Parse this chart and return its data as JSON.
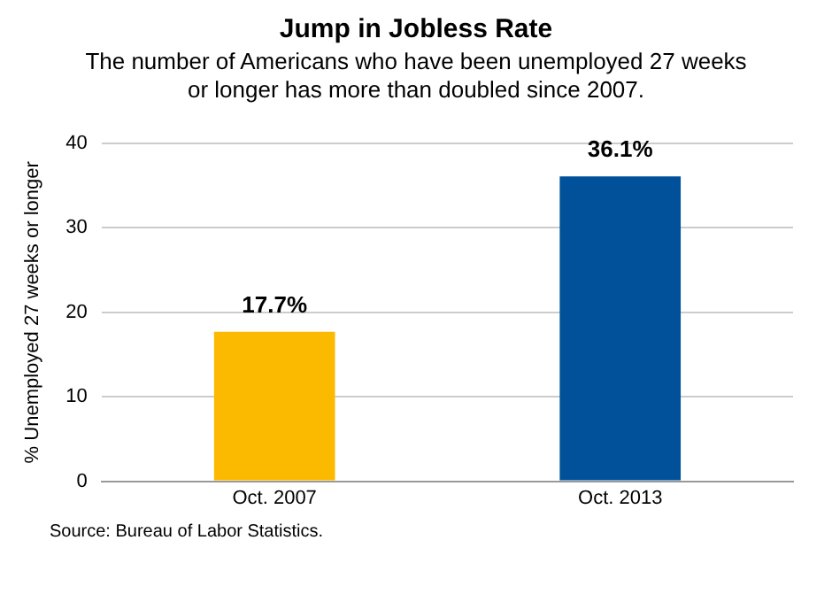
{
  "chart_data": {
    "type": "bar",
    "title": "Jump in Jobless Rate",
    "subtitle": "The number of Americans who have been unemployed 27 weeks or longer has more than doubled since 2007.",
    "ylabel": "% Unemployed 27 weeks or longer",
    "categories": [
      "Oct. 2007",
      "Oct. 2013"
    ],
    "values": [
      17.7,
      36.1
    ],
    "colors": [
      "#fbb900",
      "#00519a"
    ],
    "value_labels": [
      "17.7%",
      "36.1%"
    ],
    "ylim": [
      0,
      40
    ],
    "yticks": [
      0,
      10,
      20,
      30,
      40
    ],
    "grid": "y",
    "legend": false,
    "annotations": [
      "Source: Bureau of Labor Statistics."
    ]
  }
}
